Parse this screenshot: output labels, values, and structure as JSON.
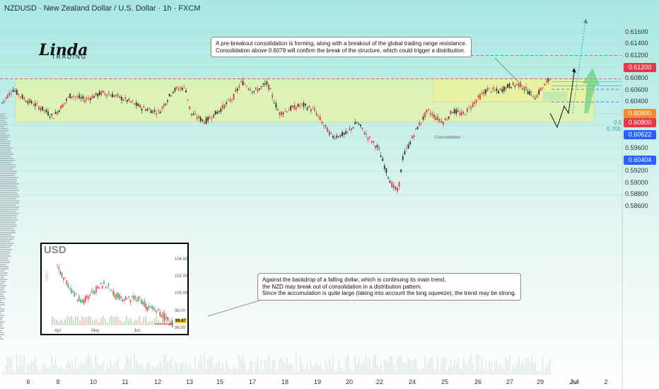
{
  "header": {
    "title": "NZDUSD · New Zealand Dollar / U.S. Dollar · 1h · FXCM"
  },
  "logo": {
    "main": "Linda",
    "sub": "TRADING"
  },
  "callouts": {
    "top": [
      "A pre-breakout consolidation is forming, along with a breakout of the global trading range resistance.",
      "Consolidation above 0.6079 will confirm the break of the structure, which could trigger a distribution."
    ],
    "bottom": [
      "Against the backdrop of a falling dollar, which is continuing its main trend,",
      "the NZD may break out of consolidation in a distribution pattern.",
      "Since the accumulation is quite large (taking into account the long squeeze), the trend may be strong."
    ]
  },
  "zone_label": "Consolidation",
  "fib": {
    "a": "0.5",
    "b": "0.705"
  },
  "colors": {
    "up": "#2a2f33",
    "down": "#e53945",
    "range": "#e6f3a6",
    "accent_green": "#6fcf84",
    "tag_red": "#e53945",
    "tag_orange": "#f08a2e",
    "tag_blue": "#2962ff"
  },
  "price_tags": [
    {
      "text": "0.61200",
      "color": "#e53945"
    },
    {
      "text": "0.60800",
      "color": "#f08a2e"
    },
    {
      "text": "0.60800",
      "color": "#e53945"
    },
    {
      "text": "0.60622",
      "color": "#2962ff"
    },
    {
      "text": "0.60404",
      "color": "#2962ff"
    }
  ],
  "inset": {
    "title": "USD",
    "y_labels": [
      "104.00",
      "102.00",
      "100.00",
      "98.00",
      "96.00"
    ],
    "x_labels": [
      "Apr",
      "May",
      "Jun"
    ],
    "last": "96.67",
    "timeframe": "DAILY"
  },
  "chart_data": {
    "type": "candlestick",
    "title": "NZDUSD · New Zealand Dollar / U.S. Dollar · 1h · FXCM",
    "y_labels": [
      "0.61600",
      "0.61400",
      "0.61200",
      "0.61000",
      "0.60800",
      "0.60600",
      "0.60400",
      "0.60200",
      "0.60000",
      "0.59800",
      "0.59600",
      "0.59400",
      "0.59200",
      "0.59000",
      "0.58800",
      "0.58600"
    ],
    "ylim": [
      0.5858,
      0.6178
    ],
    "x_labels": [
      "6",
      "8",
      "10",
      "11",
      "12",
      "13",
      "15",
      "17",
      "18",
      "19",
      "20",
      "22",
      "24",
      "25",
      "26",
      "27",
      "29",
      "Jul",
      "2"
    ],
    "range_zone": [
      0.6005,
      0.608
    ],
    "consolidation_zone": [
      0.604,
      0.608
    ],
    "key_levels": [
      0.612,
      0.608,
      0.6062,
      0.604
    ],
    "path": [
      [
        0,
        0.6034
      ],
      [
        18,
        0.6062
      ],
      [
        35,
        0.6045
      ],
      [
        60,
        0.6028
      ],
      [
        75,
        0.6014
      ],
      [
        100,
        0.6052
      ],
      [
        120,
        0.6044
      ],
      [
        145,
        0.6056
      ],
      [
        165,
        0.605
      ],
      [
        185,
        0.604
      ],
      [
        200,
        0.603
      ],
      [
        225,
        0.6022
      ],
      [
        245,
        0.606
      ],
      [
        262,
        0.6066
      ],
      [
        270,
        0.602
      ],
      [
        290,
        0.6006
      ],
      [
        310,
        0.6025
      ],
      [
        330,
        0.6048
      ],
      [
        342,
        0.6075
      ],
      [
        360,
        0.6058
      ],
      [
        378,
        0.6072
      ],
      [
        395,
        0.602
      ],
      [
        410,
        0.6028
      ],
      [
        428,
        0.6035
      ],
      [
        445,
        0.6025
      ],
      [
        458,
        0.6
      ],
      [
        470,
        0.598
      ],
      [
        490,
        0.5985
      ],
      [
        505,
        0.6005
      ],
      [
        520,
        0.598
      ],
      [
        535,
        0.596
      ],
      [
        545,
        0.5925
      ],
      [
        555,
        0.5895
      ],
      [
        563,
        0.5885
      ],
      [
        570,
        0.5945
      ],
      [
        590,
        0.5995
      ],
      [
        605,
        0.6025
      ],
      [
        618,
        0.6012
      ],
      [
        628,
        0.6005
      ],
      [
        640,
        0.6025
      ],
      [
        655,
        0.6018
      ],
      [
        675,
        0.6045
      ],
      [
        690,
        0.6062
      ],
      [
        705,
        0.6058
      ],
      [
        720,
        0.6068
      ],
      [
        735,
        0.607
      ],
      [
        745,
        0.606
      ],
      [
        758,
        0.6048
      ],
      [
        765,
        0.6062
      ],
      [
        778,
        0.608
      ]
    ]
  }
}
